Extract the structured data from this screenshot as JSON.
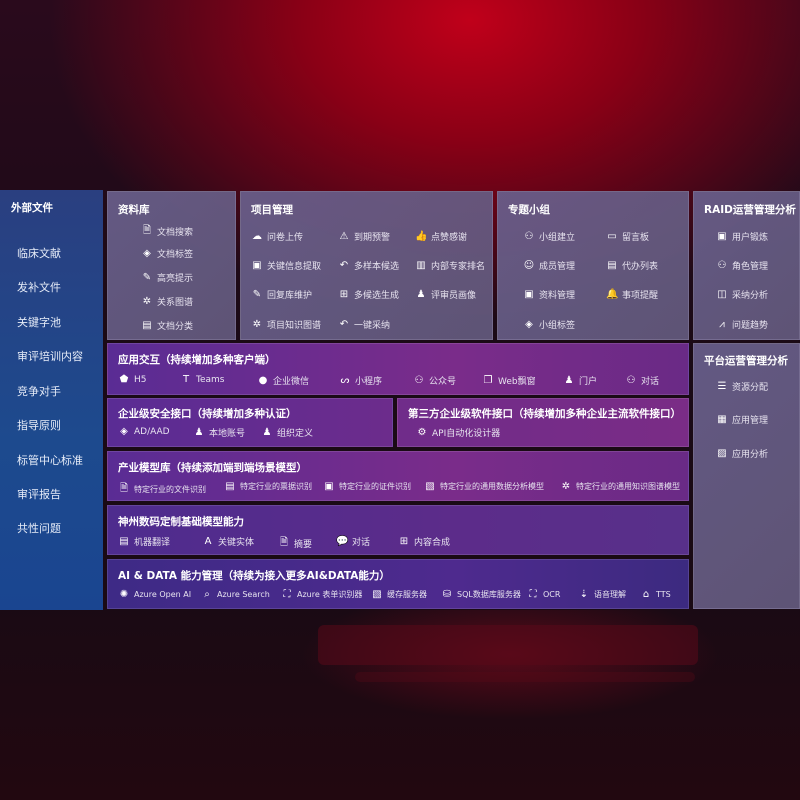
{
  "sidebar": {
    "title": "外部文件",
    "items": [
      "临床文献",
      "发补文件",
      "关键字池",
      "审评培训内容",
      "竞争对手",
      "指导原则",
      "标管中心标准",
      "审评报告",
      "共性问题"
    ]
  },
  "library": {
    "title": "资料库",
    "items": [
      {
        "icon": "doc-search-icon",
        "label": "文档搜索"
      },
      {
        "icon": "tag-icon",
        "label": "文档标签"
      },
      {
        "icon": "pen-icon",
        "label": "高亮提示"
      },
      {
        "icon": "graph-icon",
        "label": "关系图谱"
      },
      {
        "icon": "doc-classify-icon",
        "label": "文档分类"
      }
    ]
  },
  "project": {
    "title": "项目管理",
    "items": [
      {
        "icon": "cloud-upload-icon",
        "label": "问卷上传"
      },
      {
        "icon": "alarm-icon",
        "label": "到期预警"
      },
      {
        "icon": "thumbs-up-icon",
        "label": "点赞感谢"
      },
      {
        "icon": "window-icon",
        "label": "关键信息提取"
      },
      {
        "icon": "reply-icon",
        "label": "多样本候选"
      },
      {
        "icon": "ranking-icon",
        "label": "内部专家排名"
      },
      {
        "icon": "edit-icon",
        "label": "回复库维护"
      },
      {
        "icon": "puzzle-icon",
        "label": "多候选生成"
      },
      {
        "icon": "person-icon",
        "label": "评审员画像"
      },
      {
        "icon": "graph-icon",
        "label": "项目知识图谱"
      },
      {
        "icon": "reply-icon",
        "label": "一键采纳"
      }
    ]
  },
  "group": {
    "title": "专题小组",
    "items": [
      {
        "icon": "group-icon",
        "label": "小组建立"
      },
      {
        "icon": "bbs-icon",
        "label": "留言板"
      },
      {
        "icon": "user-add-icon",
        "label": "成员管理"
      },
      {
        "icon": "clipboard-icon",
        "label": "代办列表"
      },
      {
        "icon": "folder-icon",
        "label": "资料管理"
      },
      {
        "icon": "bell-icon",
        "label": "事项提醒"
      },
      {
        "icon": "tag-icon",
        "label": "小组标签"
      }
    ]
  },
  "raid": {
    "title": "RAID运营管理分析",
    "items": [
      {
        "icon": "id-card-icon",
        "label": "用户锻炼"
      },
      {
        "icon": "users-icon",
        "label": "角色管理"
      },
      {
        "icon": "qa-icon",
        "label": "采纳分析"
      },
      {
        "icon": "trend-icon",
        "label": "问题趋势"
      }
    ]
  },
  "platform": {
    "title": "平台运营管理分析",
    "items": [
      {
        "icon": "checklist-icon",
        "label": "资源分配"
      },
      {
        "icon": "apps-icon",
        "label": "应用管理"
      },
      {
        "icon": "chart-icon",
        "label": "应用分析"
      }
    ]
  },
  "app": {
    "title": "应用交互（持续增加多种客户端）",
    "items": [
      {
        "icon": "html5-icon",
        "label": "H5"
      },
      {
        "icon": "teams-icon",
        "label": "Teams"
      },
      {
        "icon": "wechat-icon",
        "label": "企业微信"
      },
      {
        "icon": "miniprogram-icon",
        "label": "小程序"
      },
      {
        "icon": "official-account-icon",
        "label": "公众号"
      },
      {
        "icon": "window-icon",
        "label": "Web飘窗"
      },
      {
        "icon": "portal-icon",
        "label": "门户"
      },
      {
        "icon": "chat-icon",
        "label": "对话"
      }
    ]
  },
  "security": {
    "title": "企业级安全接口（持续增加多种认证）",
    "items": [
      {
        "icon": "ad-icon",
        "label": "AD/AAD"
      },
      {
        "icon": "local-account-icon",
        "label": "本地账号"
      },
      {
        "icon": "org-icon",
        "label": "组织定义"
      }
    ]
  },
  "third": {
    "title": "第三方企业级软件接口（持续增加多种企业主流软件接口）",
    "items": [
      {
        "icon": "gear-icon",
        "label": "API自动化设计器"
      }
    ]
  },
  "industry": {
    "title": "产业模型库（持续添加端到端场景模型）",
    "items": [
      {
        "icon": "doc-icon",
        "label": "特定行业的文件识别"
      },
      {
        "icon": "receipt-icon",
        "label": "特定行业的票据识别"
      },
      {
        "icon": "id-card-icon",
        "label": "特定行业的证件识别"
      },
      {
        "icon": "image-icon",
        "label": "特定行业的通用数据分析模型"
      },
      {
        "icon": "graph-icon",
        "label": "特定行业的通用知识图谱模型"
      }
    ]
  },
  "base": {
    "title": "神州数码定制基础模型能力",
    "items": [
      {
        "icon": "translate-icon",
        "label": "机器翻译"
      },
      {
        "icon": "entity-icon",
        "label": "关键实体"
      },
      {
        "icon": "summary-icon",
        "label": "摘要"
      },
      {
        "icon": "chat-icon",
        "label": "对话"
      },
      {
        "icon": "puzzle-icon",
        "label": "内容合成"
      }
    ]
  },
  "ai": {
    "title": "AI & DATA 能力管理（持续为接入更多AI&DATA能力）",
    "items": [
      {
        "icon": "openai-icon",
        "label": "Azure Open AI"
      },
      {
        "icon": "search-icon",
        "label": "Azure Search"
      },
      {
        "icon": "form-recognizer-icon",
        "label": "Azure 表单识别器"
      },
      {
        "icon": "cache-icon",
        "label": "缓存服务器"
      },
      {
        "icon": "sql-icon",
        "label": "SQL数据库服务器"
      },
      {
        "icon": "ocr-icon",
        "label": "OCR"
      },
      {
        "icon": "speech-icon",
        "label": "语音理解"
      },
      {
        "icon": "tts-icon",
        "label": "TTS"
      }
    ]
  }
}
